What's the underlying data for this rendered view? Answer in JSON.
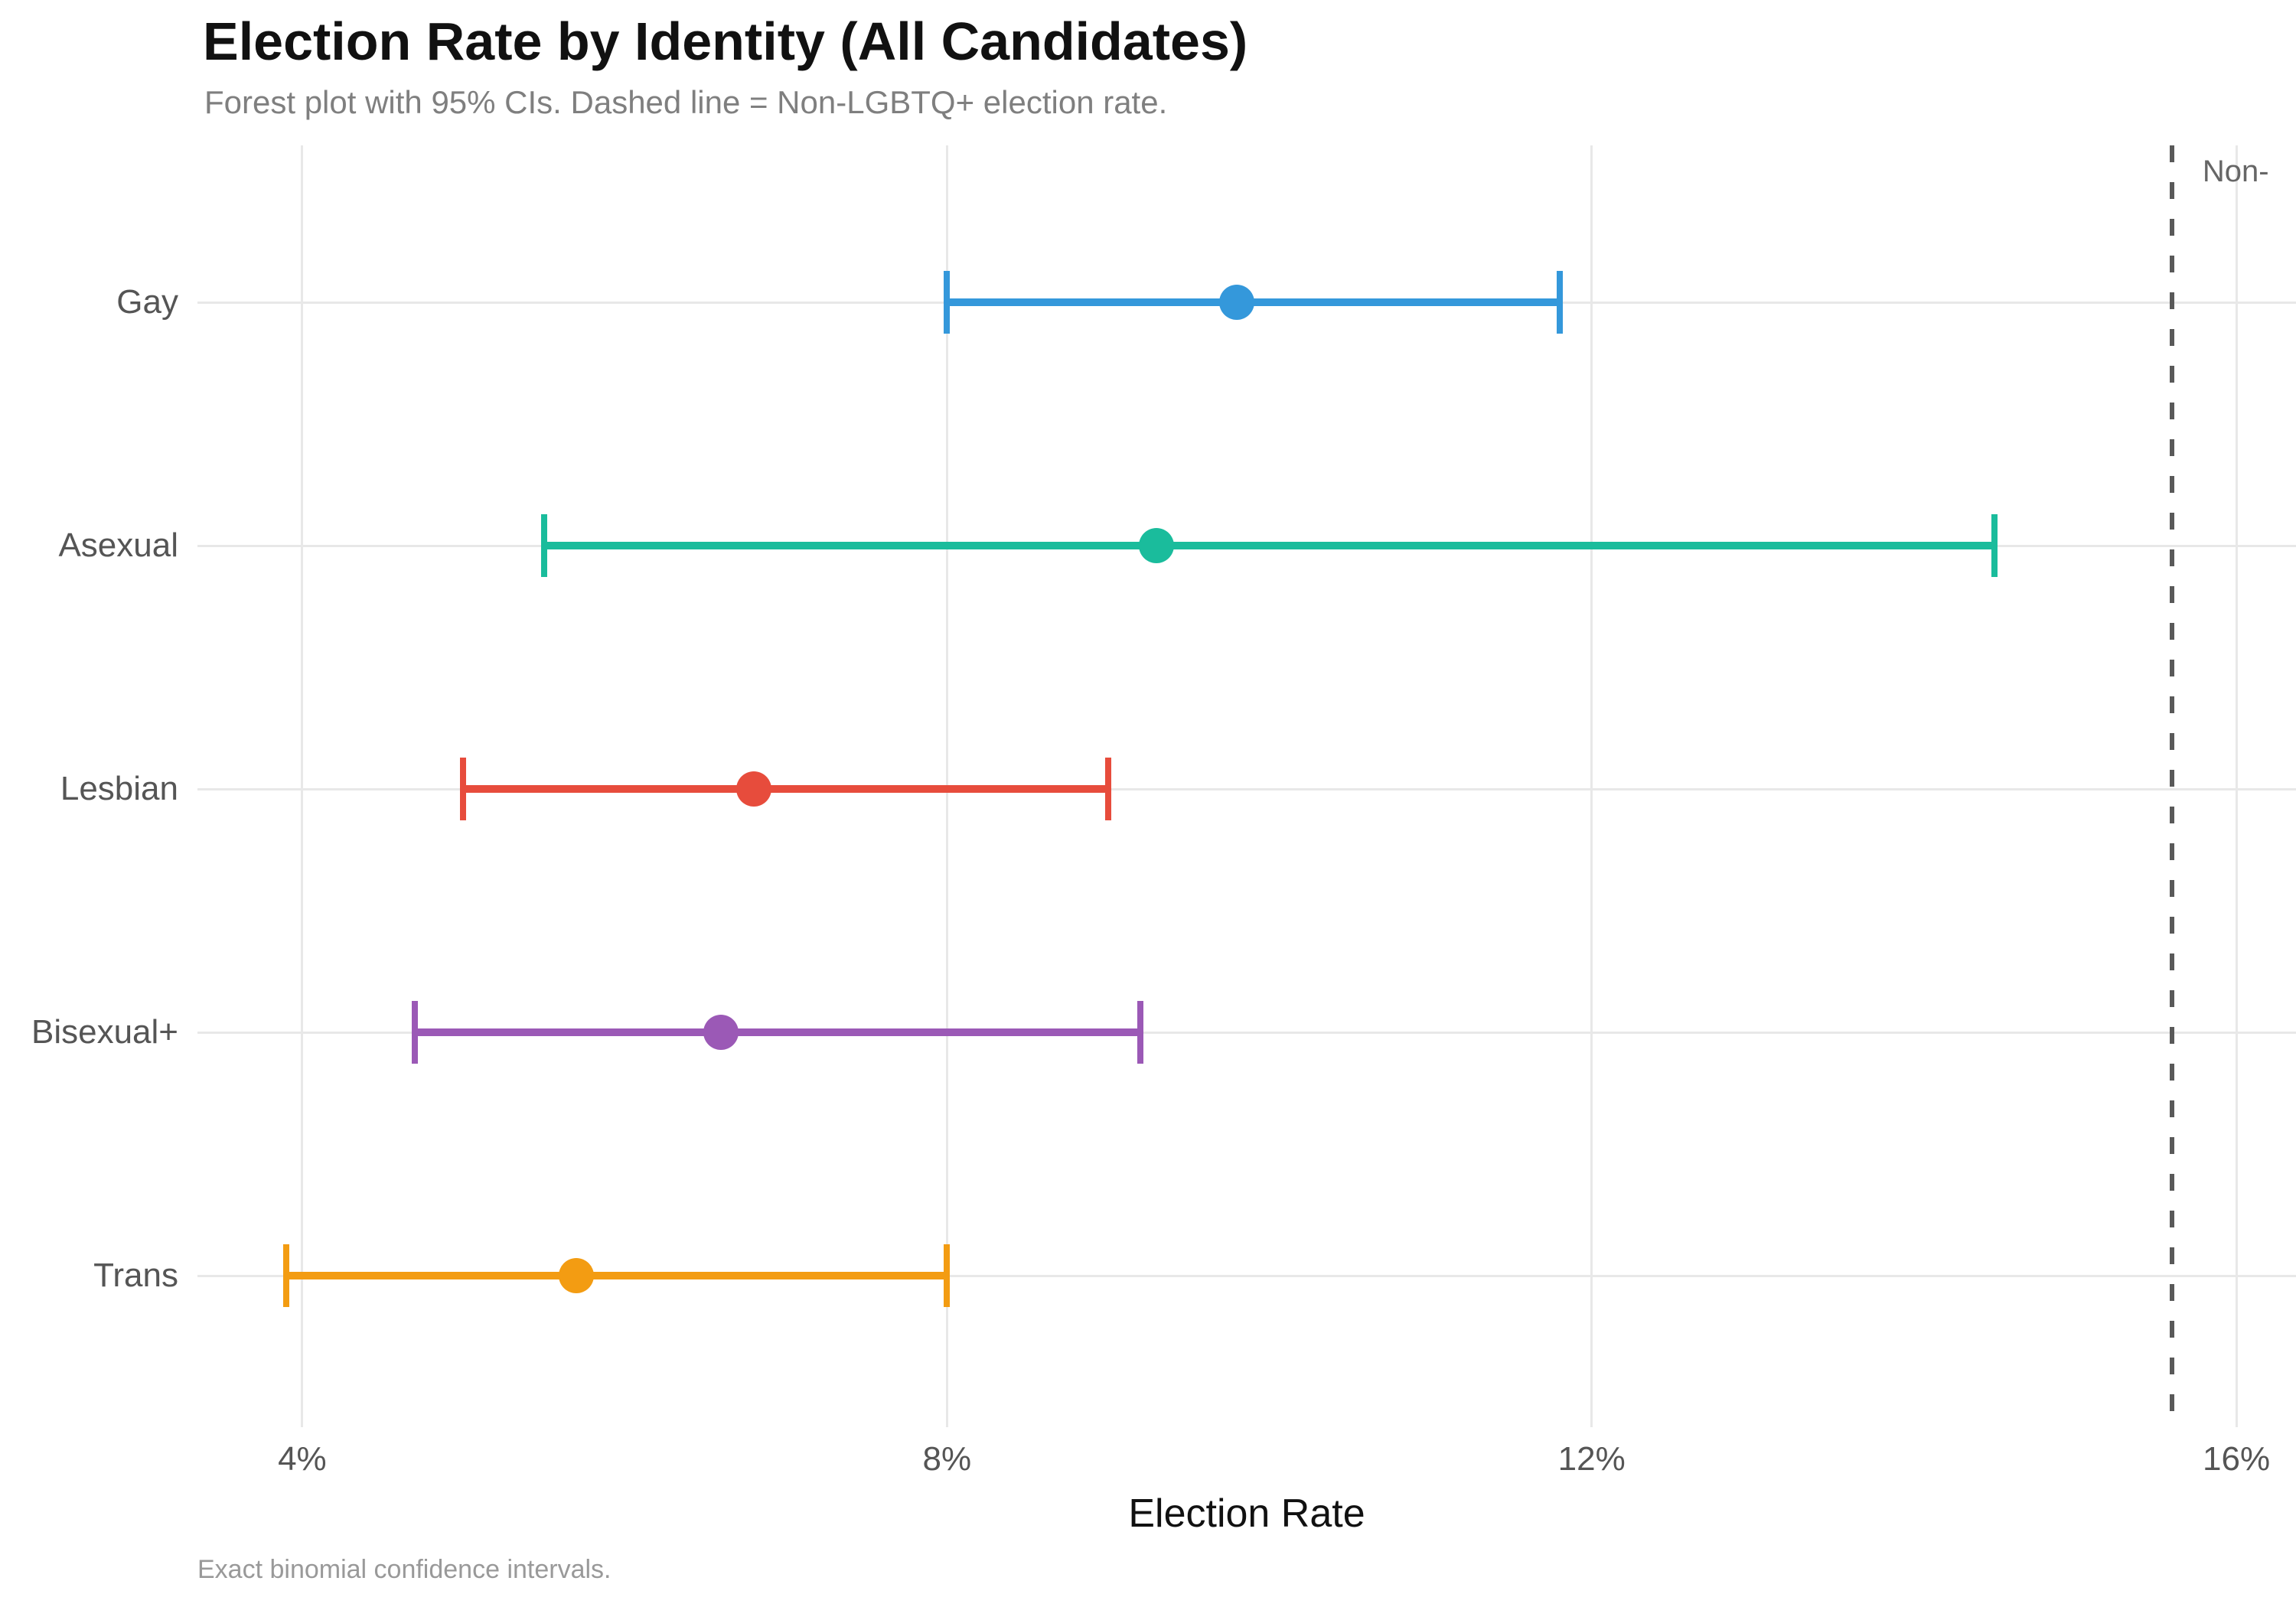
{
  "chart_data": {
    "type": "scatter",
    "variant": "forest-plot-with-error-bars",
    "title": "Election Rate by Identity (All Candidates)",
    "subtitle": "Forest plot with 95% CIs. Dashed line = Non-LGBTQ+ election rate.",
    "caption": "Exact binomial confidence intervals.",
    "xlabel": "Election Rate",
    "ci_level": "95%",
    "xlim": [
      3.35,
      16.37
    ],
    "grid": "major-both",
    "legend": "none",
    "x_ticks": [
      {
        "value": 4,
        "label": "4%"
      },
      {
        "value": 8,
        "label": "8%"
      },
      {
        "value": 12,
        "label": "12%"
      },
      {
        "value": 16,
        "label": "16%"
      }
    ],
    "categories": [
      "Gay",
      "Asexual",
      "Lesbian",
      "Bisexual+",
      "Trans"
    ],
    "rows": [
      {
        "label": "Gay",
        "estimate": 9.8,
        "ci_low": 8.0,
        "ci_high": 11.8,
        "color": "#3498db"
      },
      {
        "label": "Asexual",
        "estimate": 9.3,
        "ci_low": 5.5,
        "ci_high": 14.5,
        "color": "#1abc9c"
      },
      {
        "label": "Lesbian",
        "estimate": 6.8,
        "ci_low": 5.0,
        "ci_high": 9.0,
        "color": "#e74c3c"
      },
      {
        "label": "Bisexual+",
        "estimate": 6.6,
        "ci_low": 4.7,
        "ci_high": 9.2,
        "color": "#9b59b6"
      },
      {
        "label": "Trans",
        "estimate": 5.7,
        "ci_low": 3.9,
        "ci_high": 8.0,
        "color": "#f39c12"
      }
    ],
    "ref_line": {
      "value": 15.6,
      "label": "Non-",
      "style": "dashed",
      "color": "#595959"
    }
  },
  "colors": {
    "gridline": "#e8e8e8",
    "title_text": "#111111",
    "subtitle_text": "#7f7f7f",
    "axis_text": "#555555",
    "caption_text": "#999999",
    "ref_label_text": "#666666"
  }
}
